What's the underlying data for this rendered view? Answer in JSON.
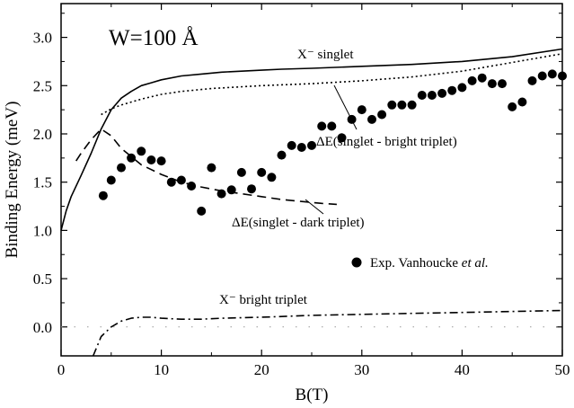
{
  "chart_data": {
    "type": "line",
    "panel_label": "W=100 Å",
    "xlabel": "B(T)",
    "ylabel": "Binding Energy (meV)",
    "xlim": [
      0,
      50
    ],
    "ylim": [
      -0.3,
      3.35
    ],
    "x_ticks": [
      "0",
      "10",
      "20",
      "30",
      "40",
      "50"
    ],
    "y_ticks": [
      "0.0",
      "0.5",
      "1.0",
      "1.5",
      "2.0",
      "2.5",
      "3.0"
    ],
    "grid": false,
    "legend_position": "right-middle",
    "annotations": {
      "singlet": "X⁻ singlet",
      "bright_diff": "ΔE(singlet - bright triplet)",
      "dark_diff": "ΔE(singlet - dark triplet)",
      "bright_triplet": "X⁻ bright triplet"
    },
    "series": [
      {
        "name": "X⁻ singlet",
        "style": "solid",
        "x": [
          0,
          0.5,
          1,
          2,
          3,
          4,
          5,
          6,
          7,
          8,
          9,
          10,
          12,
          14,
          16,
          18,
          20,
          22,
          25,
          30,
          35,
          40,
          45,
          50
        ],
        "y": [
          1.0,
          1.2,
          1.35,
          1.57,
          1.8,
          2.05,
          2.25,
          2.37,
          2.44,
          2.5,
          2.53,
          2.56,
          2.6,
          2.62,
          2.64,
          2.65,
          2.66,
          2.67,
          2.68,
          2.7,
          2.72,
          2.75,
          2.8,
          2.88
        ]
      },
      {
        "name": "ΔE(singlet - bright triplet)",
        "style": "dotted",
        "x": [
          4,
          5,
          6,
          8,
          10,
          12,
          15,
          20,
          25,
          30,
          35,
          40,
          45,
          50
        ],
        "y": [
          2.2,
          2.26,
          2.3,
          2.36,
          2.41,
          2.44,
          2.47,
          2.5,
          2.52,
          2.55,
          2.59,
          2.65,
          2.74,
          2.83
        ]
      },
      {
        "name": "ΔE(singlet - dark triplet)",
        "style": "dashed",
        "x": [
          1.5,
          2,
          3,
          4,
          5,
          6,
          8,
          10,
          12,
          14,
          16,
          18,
          20,
          22,
          24,
          26,
          27.5
        ],
        "y": [
          1.72,
          1.8,
          1.94,
          2.05,
          1.98,
          1.85,
          1.68,
          1.58,
          1.5,
          1.45,
          1.41,
          1.38,
          1.35,
          1.32,
          1.3,
          1.28,
          1.27
        ]
      },
      {
        "name": "X⁻ bright triplet",
        "style": "dashdot",
        "x": [
          3.2,
          4,
          5,
          6,
          7,
          8,
          9,
          10,
          12,
          14,
          16,
          20,
          25,
          30,
          35,
          40,
          45,
          50
        ],
        "y": [
          -0.3,
          -0.1,
          0.0,
          0.06,
          0.09,
          0.1,
          0.1,
          0.09,
          0.08,
          0.08,
          0.09,
          0.1,
          0.12,
          0.13,
          0.14,
          0.15,
          0.16,
          0.17
        ]
      }
    ],
    "scatter": {
      "name": "Exp. Vanhoucke et al.",
      "legend_label_prefix": "Exp. Vanhoucke ",
      "legend_label_italic": "et al.",
      "x": [
        4.2,
        5,
        6,
        7,
        8,
        9,
        10,
        11,
        12,
        13,
        14,
        15,
        16,
        17,
        18,
        19,
        20,
        21,
        22,
        23,
        24,
        25,
        26,
        27,
        28,
        29,
        30,
        31,
        32,
        33,
        34,
        35,
        36,
        37,
        38,
        39,
        40,
        41,
        42,
        43,
        44,
        45,
        46,
        47,
        48,
        49,
        50
      ],
      "y": [
        1.36,
        1.52,
        1.65,
        1.75,
        1.82,
        1.73,
        1.72,
        1.5,
        1.52,
        1.46,
        1.2,
        1.65,
        1.38,
        1.42,
        1.6,
        1.43,
        1.6,
        1.55,
        1.78,
        1.88,
        1.86,
        1.88,
        2.08,
        2.08,
        1.96,
        2.15,
        2.25,
        2.15,
        2.2,
        2.3,
        2.3,
        2.3,
        2.4,
        2.4,
        2.42,
        2.45,
        2.48,
        2.55,
        2.58,
        2.52,
        2.52,
        2.28,
        2.33,
        2.55,
        2.6,
        2.62,
        2.6
      ]
    },
    "colors": {
      "line": "#000000",
      "background": "#ffffff",
      "baseline": "#999999"
    }
  }
}
